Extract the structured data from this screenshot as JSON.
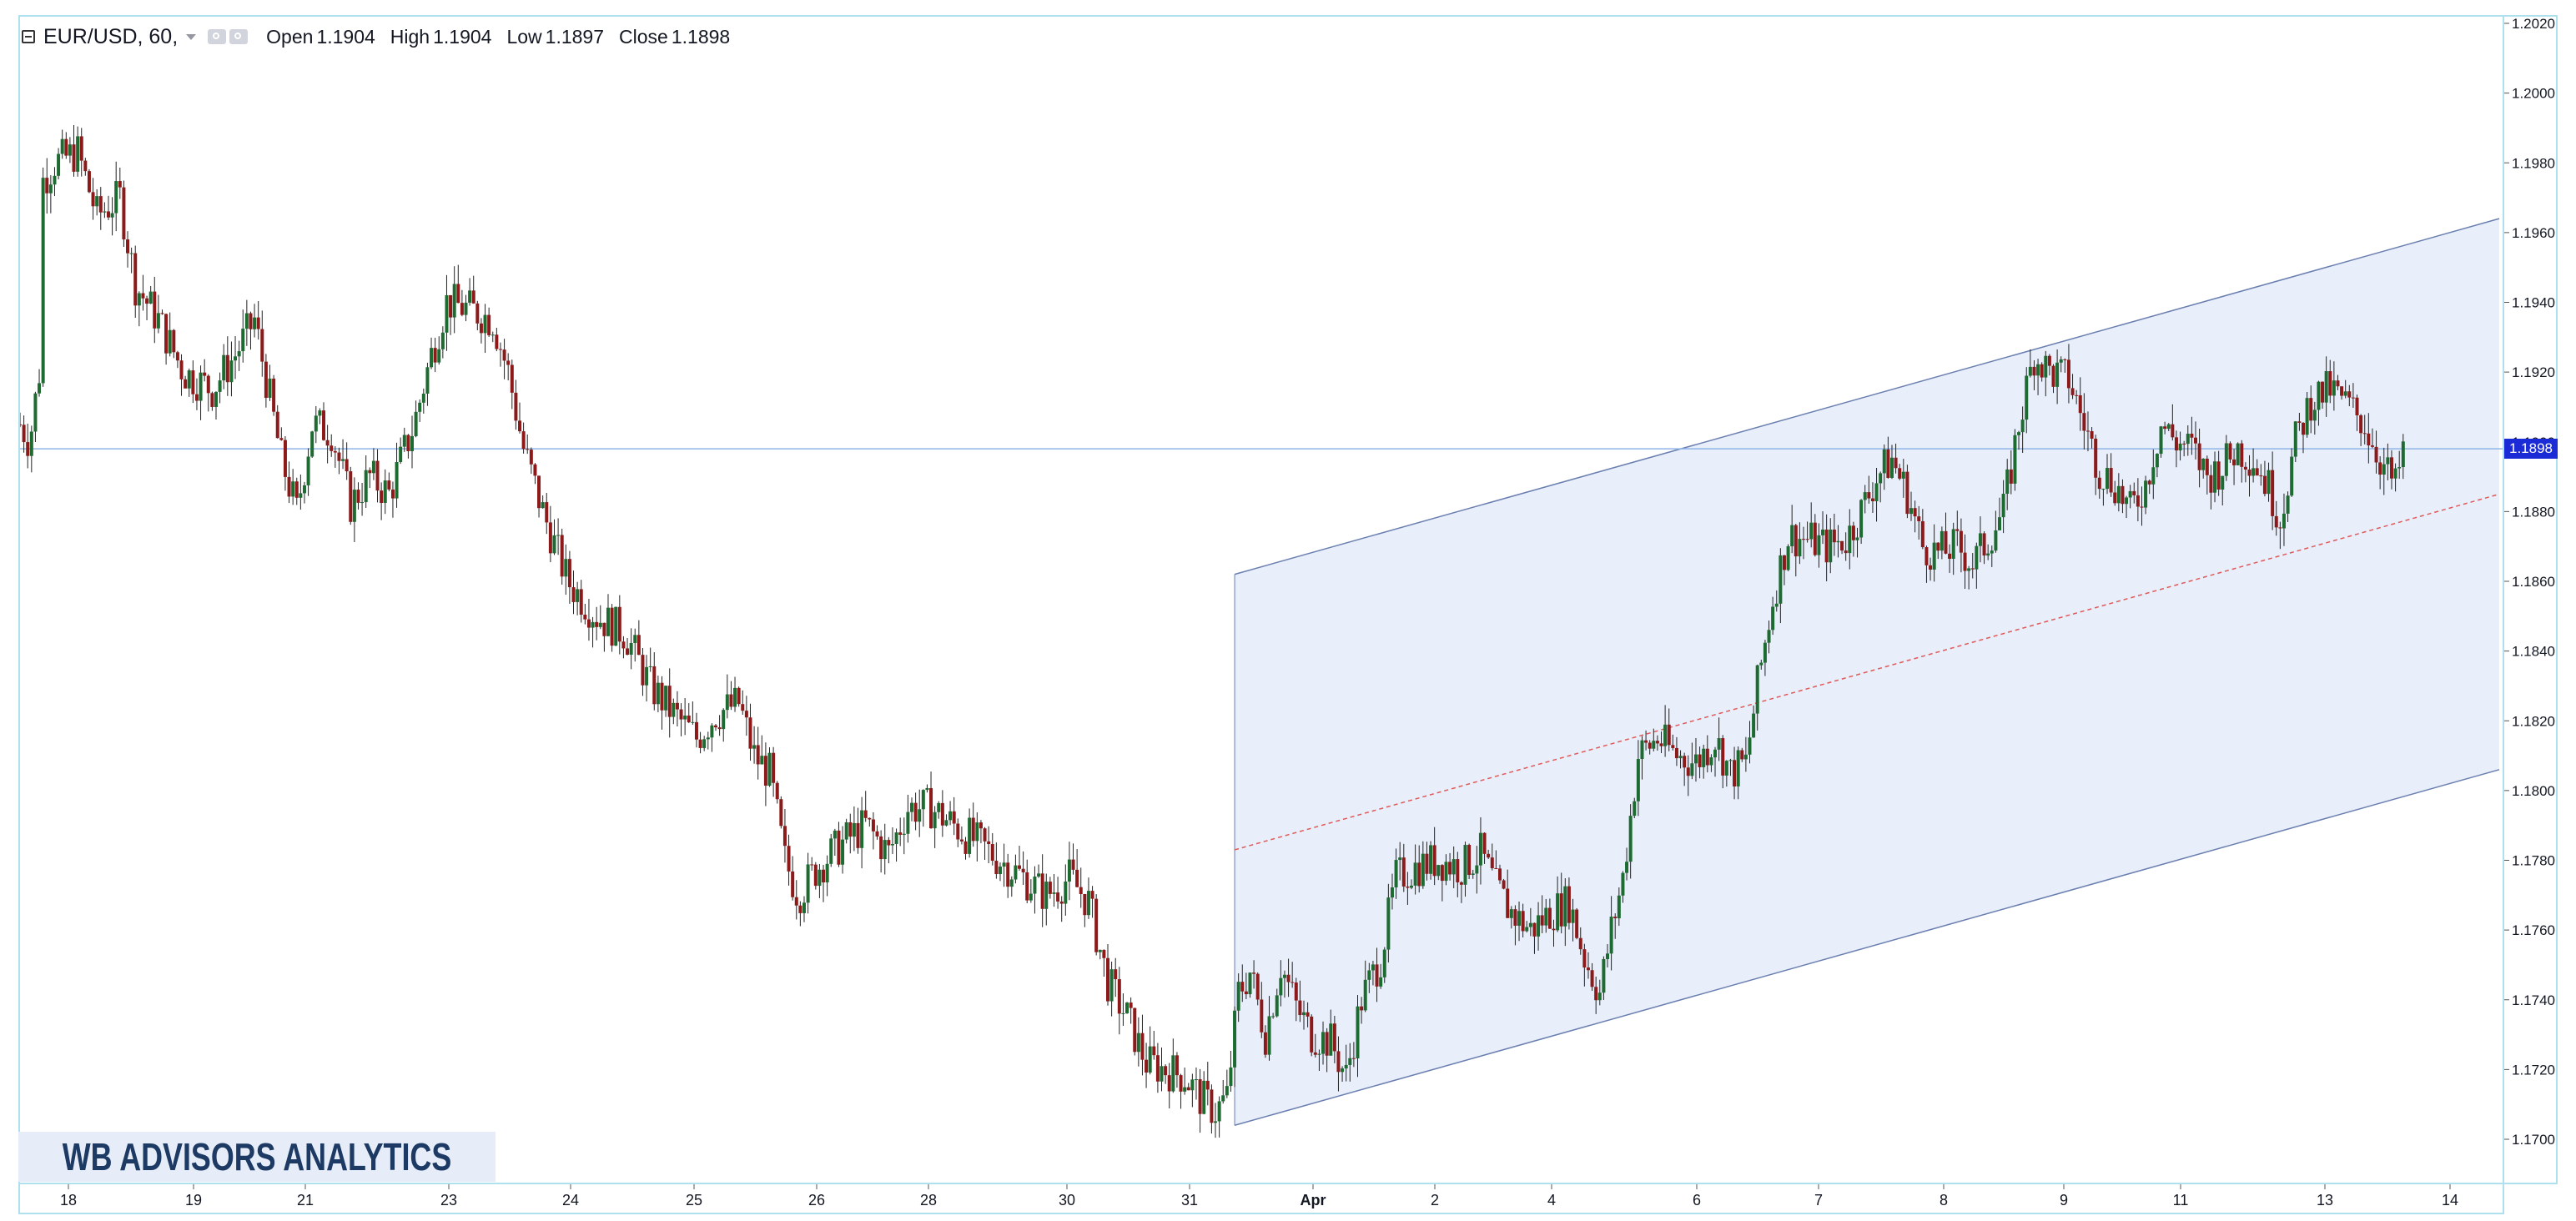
{
  "legend": {
    "symbol": "EUR/USD, 60,",
    "open_label": "Open",
    "open": "1.1904",
    "high_label": "High",
    "high": "1.1904",
    "low_label": "Low",
    "low": "1.1897",
    "close_label": "Close",
    "close": "1.1898",
    "icons": [
      "collapse-icon",
      "dropdown-caret-icon",
      "eye-icon",
      "settings-icon"
    ]
  },
  "watermark": "WB ADVISORS ANALYTICS",
  "last_price_label": "1.1898",
  "colors": {
    "up": "#1e6b32",
    "down": "#8c1a1a",
    "channel_fill": "#e8eefa",
    "channel_line": "#6a7fb0",
    "mid_line": "#e05a5a",
    "price_line": "#8fb4e8",
    "last_price_bg": "#1b2bd6"
  },
  "chart_data": {
    "type": "candlestick",
    "symbol": "EUR/USD",
    "interval": "60",
    "ylim": [
      1.1688,
      1.2022
    ],
    "y_ticks": [
      "1.2020",
      "1.2000",
      "1.1980",
      "1.1960",
      "1.1940",
      "1.1920",
      "1.1900",
      "1.1880",
      "1.1860",
      "1.1840",
      "1.1820",
      "1.1800",
      "1.1780",
      "1.1760",
      "1.1740",
      "1.1720",
      "1.1700"
    ],
    "x_ticks": [
      {
        "label": "18",
        "bold": false
      },
      {
        "label": "19",
        "bold": false
      },
      {
        "label": "21",
        "bold": false
      },
      {
        "label": "23",
        "bold": false
      },
      {
        "label": "24",
        "bold": false
      },
      {
        "label": "25",
        "bold": false
      },
      {
        "label": "26",
        "bold": false
      },
      {
        "label": "28",
        "bold": false
      },
      {
        "label": "30",
        "bold": false
      },
      {
        "label": "31",
        "bold": false
      },
      {
        "label": "Apr",
        "bold": true
      },
      {
        "label": "2",
        "bold": false
      },
      {
        "label": "4",
        "bold": false
      },
      {
        "label": "6",
        "bold": false
      },
      {
        "label": "7",
        "bold": false
      },
      {
        "label": "8",
        "bold": false
      },
      {
        "label": "9",
        "bold": false
      },
      {
        "label": "11",
        "bold": false
      },
      {
        "label": "13",
        "bold": false
      },
      {
        "label": "14",
        "bold": false
      }
    ],
    "last_price": 1.1898,
    "path": [
      [
        0,
        1.1905
      ],
      [
        5,
        1.19
      ],
      [
        10,
        1.192
      ],
      [
        12,
        1.1975
      ],
      [
        18,
        1.198
      ],
      [
        30,
        1.1983
      ],
      [
        40,
        1.1965
      ],
      [
        52,
        1.197
      ],
      [
        60,
        1.1945
      ],
      [
        72,
        1.1935
      ],
      [
        85,
        1.192
      ],
      [
        100,
        1.1915
      ],
      [
        112,
        1.1925
      ],
      [
        122,
        1.1935
      ],
      [
        128,
        1.1918
      ],
      [
        136,
        1.1895
      ],
      [
        144,
        1.188
      ],
      [
        152,
        1.1905
      ],
      [
        162,
        1.1903
      ],
      [
        172,
        1.1882
      ],
      [
        182,
        1.189
      ],
      [
        192,
        1.1885
      ],
      [
        205,
        1.1905
      ],
      [
        214,
        1.1925
      ],
      [
        222,
        1.194
      ],
      [
        234,
        1.1938
      ],
      [
        246,
        1.1935
      ],
      [
        254,
        1.192
      ],
      [
        262,
        1.1898
      ],
      [
        272,
        1.188
      ],
      [
        285,
        1.186
      ],
      [
        300,
        1.185
      ],
      [
        315,
        1.1845
      ],
      [
        328,
        1.183
      ],
      [
        340,
        1.1822
      ],
      [
        352,
        1.1815
      ],
      [
        362,
        1.1822
      ],
      [
        374,
        1.1825
      ],
      [
        382,
        1.181
      ],
      [
        390,
        1.1805
      ],
      [
        398,
        1.178
      ],
      [
        405,
        1.177
      ],
      [
        415,
        1.1778
      ],
      [
        428,
        1.1785
      ],
      [
        440,
        1.179
      ],
      [
        452,
        1.1782
      ],
      [
        462,
        1.1795
      ],
      [
        474,
        1.1795
      ],
      [
        486,
        1.179
      ],
      [
        498,
        1.1785
      ],
      [
        510,
        1.178
      ],
      [
        522,
        1.1775
      ],
      [
        534,
        1.177
      ],
      [
        546,
        1.1775
      ],
      [
        556,
        1.1768
      ],
      [
        566,
        1.1745
      ],
      [
        576,
        1.1735
      ],
      [
        586,
        1.1722
      ],
      [
        596,
        1.172
      ],
      [
        606,
        1.1718
      ],
      [
        614,
        1.1712
      ],
      [
        622,
        1.1708
      ],
      [
        628,
        1.1712
      ],
      [
        634,
        1.1742
      ],
      [
        640,
        1.1748
      ],
      [
        648,
        1.173
      ],
      [
        656,
        1.175
      ],
      [
        664,
        1.1738
      ],
      [
        672,
        1.173
      ],
      [
        682,
        1.1728
      ],
      [
        690,
        1.1718
      ],
      [
        698,
        1.174
      ],
      [
        708,
        1.1752
      ],
      [
        716,
        1.1775
      ],
      [
        726,
        1.1778
      ],
      [
        738,
        1.178
      ],
      [
        750,
        1.1778
      ],
      [
        760,
        1.1782
      ],
      [
        768,
        1.1772
      ],
      [
        776,
        1.1765
      ],
      [
        786,
        1.176
      ],
      [
        796,
        1.1765
      ],
      [
        806,
        1.1768
      ],
      [
        814,
        1.1752
      ],
      [
        822,
        1.1742
      ],
      [
        828,
        1.176
      ],
      [
        834,
        1.1775
      ],
      [
        842,
        1.181
      ],
      [
        852,
        1.1815
      ],
      [
        862,
        1.181
      ],
      [
        872,
        1.1808
      ],
      [
        882,
        1.1815
      ],
      [
        890,
        1.1805
      ],
      [
        898,
        1.1808
      ],
      [
        904,
        1.183
      ],
      [
        912,
        1.1855
      ],
      [
        920,
        1.1873
      ],
      [
        930,
        1.1872
      ],
      [
        940,
        1.187
      ],
      [
        950,
        1.1872
      ],
      [
        958,
        1.188
      ],
      [
        966,
        1.189
      ],
      [
        974,
        1.1895
      ],
      [
        982,
        1.1885
      ],
      [
        990,
        1.187
      ],
      [
        998,
        1.1868
      ],
      [
        1008,
        1.187
      ],
      [
        1016,
        1.1865
      ],
      [
        1024,
        1.1872
      ],
      [
        1032,
        1.188
      ],
      [
        1040,
        1.1905
      ],
      [
        1048,
        1.1925
      ],
      [
        1056,
        1.192
      ],
      [
        1066,
        1.1918
      ],
      [
        1074,
        1.1905
      ],
      [
        1082,
        1.1892
      ],
      [
        1090,
        1.1888
      ],
      [
        1098,
        1.188
      ],
      [
        1106,
        1.1888
      ],
      [
        1114,
        1.1905
      ],
      [
        1122,
        1.19
      ],
      [
        1130,
        1.1898
      ],
      [
        1138,
        1.189
      ],
      [
        1146,
        1.1893
      ],
      [
        1154,
        1.1898
      ],
      [
        1162,
        1.1895
      ],
      [
        1170,
        1.1887
      ],
      [
        1176,
        1.1878
      ],
      [
        1184,
        1.19
      ],
      [
        1192,
        1.1912
      ],
      [
        1202,
        1.1915
      ],
      [
        1212,
        1.191
      ],
      [
        1220,
        1.1905
      ],
      [
        1228,
        1.1895
      ],
      [
        1236,
        1.1887
      ],
      [
        1240,
        1.1898
      ]
    ],
    "channel": {
      "upper": [
        [
          1.1862,
          1.1964
        ]
      ],
      "lower": [
        [
          1.1704,
          1.1806
        ]
      ],
      "mid": [
        [
          1.1783,
          1.1885
        ]
      ],
      "start_bar": 632,
      "end_bar": 1290
    }
  }
}
